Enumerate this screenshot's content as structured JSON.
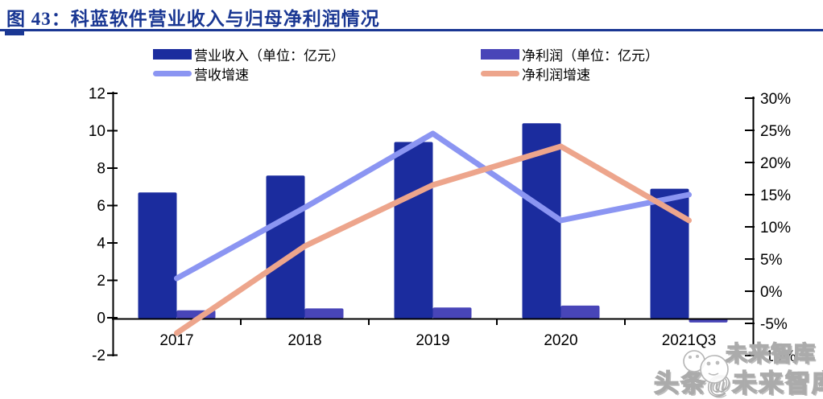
{
  "figure": {
    "title": "图 43：科蓝软件营业收入与归母净利润情况",
    "accent_color": "#1a3793"
  },
  "legend": {
    "revenue": {
      "label": "营业收入（单位：亿元）",
      "color": "#1b2c9e"
    },
    "net_profit": {
      "label": "净利润（单位：亿元）",
      "color": "#4845b8"
    },
    "revenue_growth": {
      "label": "营收增速",
      "color": "#8b95f2"
    },
    "net_profit_growth": {
      "label": "净利润增速",
      "color": "#eda58c"
    }
  },
  "watermark": {
    "line1": "未来智库",
    "line2": "头条@未来智库"
  },
  "chart_data": {
    "type": "bar+line combo",
    "title": "科蓝软件营业收入与归母净利润情况",
    "categories": [
      "2017",
      "2018",
      "2019",
      "2020",
      "2021Q3"
    ],
    "series": [
      {
        "name": "营业收入（单位：亿元）",
        "type": "bar",
        "axis": "left",
        "color": "#1b2c9e",
        "values": [
          6.7,
          7.6,
          9.4,
          10.4,
          6.9
        ]
      },
      {
        "name": "净利润（单位：亿元）",
        "type": "bar",
        "axis": "left",
        "color": "#4845b8",
        "values": [
          0.4,
          0.5,
          0.55,
          0.65,
          -0.25
        ]
      },
      {
        "name": "营收增速",
        "type": "line",
        "axis": "right",
        "color": "#8b95f2",
        "values": [
          2,
          13,
          24.5,
          11,
          15
        ]
      },
      {
        "name": "净利润增速",
        "type": "line",
        "axis": "right",
        "color": "#eda58c",
        "values": [
          -6.5,
          7,
          16.5,
          22.5,
          11
        ]
      }
    ],
    "left_axis": {
      "min": -2,
      "max": 12,
      "step": 2,
      "unit": "亿元",
      "ticks": [
        "12",
        "10",
        "8",
        "6",
        "4",
        "2",
        "0",
        "-2"
      ]
    },
    "right_axis": {
      "min": -10,
      "max": 30,
      "step": 5,
      "unit": "%",
      "ticks": [
        "30%",
        "25%",
        "20%",
        "15%",
        "10%",
        "5%",
        "0%",
        "-5%",
        "-10%"
      ]
    },
    "grid": false,
    "legend_position": "top"
  }
}
